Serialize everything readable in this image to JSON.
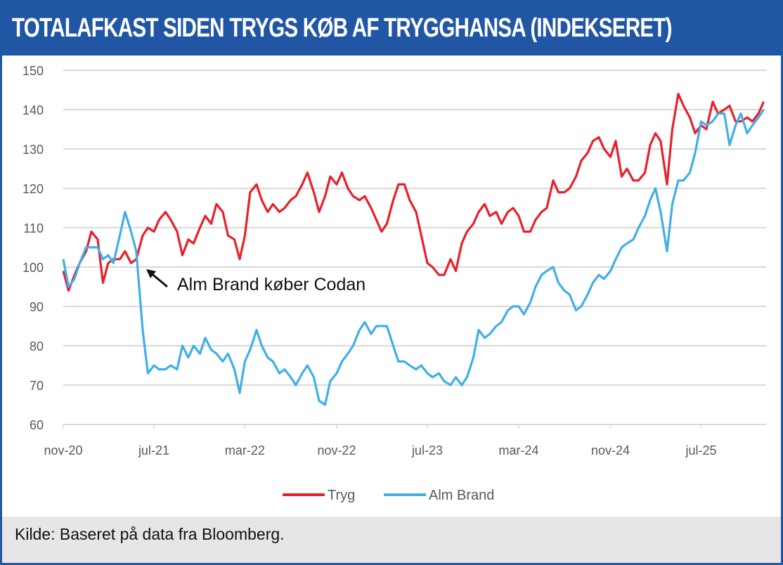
{
  "title": "TOTALAFKAST SIDEN TRYGS KØB AF TRYGGHANSA (INDEKSERET)",
  "source": "Kilde:  Baseret på data fra Bloomberg.",
  "chart_data": {
    "type": "line",
    "title": "TOTALAFKAST SIDEN TRYGS KØB AF TRYGGHANSA (INDEKSERET)",
    "xlabel": "",
    "ylabel": "",
    "ylim": [
      60,
      150
    ],
    "yticks": [
      "60",
      "70",
      "80",
      "90",
      "100",
      "110",
      "120",
      "130",
      "140",
      "150"
    ],
    "xticks": [
      {
        "label": "nov-20",
        "date": "2020-11-01"
      },
      {
        "label": "jul-21",
        "date": "2021-07-01"
      },
      {
        "label": "mar-22",
        "date": "2022-03-01"
      },
      {
        "label": "nov-22",
        "date": "2022-11-01"
      },
      {
        "label": "jul-23",
        "date": "2023-07-01"
      },
      {
        "label": "mar-24",
        "date": "2024-03-01"
      },
      {
        "label": "nov-24",
        "date": "2024-11-01"
      },
      {
        "label": "jul-25",
        "date": "2025-07-01"
      }
    ],
    "xlim": [
      "2020-11-01",
      "2025-12-31"
    ],
    "grid": "horizontal",
    "legend_position": "bottom",
    "annotation": {
      "text": "Alm Brand køber Codan",
      "date": "2021-06-15",
      "value": 102
    },
    "x": [
      "2020-11-01",
      "2020-11-15",
      "2020-12-01",
      "2020-12-15",
      "2021-01-01",
      "2021-01-15",
      "2021-02-01",
      "2021-02-15",
      "2021-03-01",
      "2021-03-15",
      "2021-04-01",
      "2021-04-15",
      "2021-05-01",
      "2021-05-15",
      "2021-06-01",
      "2021-06-15",
      "2021-07-01",
      "2021-07-15",
      "2021-08-01",
      "2021-08-15",
      "2021-09-01",
      "2021-09-15",
      "2021-10-01",
      "2021-10-15",
      "2021-11-01",
      "2021-11-15",
      "2021-12-01",
      "2021-12-15",
      "2022-01-01",
      "2022-01-15",
      "2022-02-01",
      "2022-02-15",
      "2022-03-01",
      "2022-03-15",
      "2022-04-01",
      "2022-04-15",
      "2022-05-01",
      "2022-05-15",
      "2022-06-01",
      "2022-06-15",
      "2022-07-01",
      "2022-07-15",
      "2022-08-01",
      "2022-08-15",
      "2022-09-01",
      "2022-09-15",
      "2022-10-01",
      "2022-10-15",
      "2022-11-01",
      "2022-11-15",
      "2022-12-01",
      "2022-12-15",
      "2023-01-01",
      "2023-01-15",
      "2023-02-01",
      "2023-02-15",
      "2023-03-01",
      "2023-03-15",
      "2023-04-01",
      "2023-04-15",
      "2023-05-01",
      "2023-05-15",
      "2023-06-01",
      "2023-06-15",
      "2023-07-01",
      "2023-07-15",
      "2023-08-01",
      "2023-08-15",
      "2023-09-01",
      "2023-09-15",
      "2023-10-01",
      "2023-10-15",
      "2023-11-01",
      "2023-11-15",
      "2023-12-01",
      "2023-12-15",
      "2024-01-01",
      "2024-01-15",
      "2024-02-01",
      "2024-02-15",
      "2024-03-01",
      "2024-03-15",
      "2024-04-01",
      "2024-04-15",
      "2024-05-01",
      "2024-05-15",
      "2024-06-01",
      "2024-06-15",
      "2024-07-01",
      "2024-07-15",
      "2024-08-01",
      "2024-08-15",
      "2024-09-01",
      "2024-09-15",
      "2024-10-01",
      "2024-10-15",
      "2024-11-01",
      "2024-11-15",
      "2024-12-01",
      "2024-12-15",
      "2025-01-01",
      "2025-01-15",
      "2025-02-01",
      "2025-02-15",
      "2025-03-01",
      "2025-03-15",
      "2025-04-01",
      "2025-04-15",
      "2025-05-01",
      "2025-05-15",
      "2025-06-01",
      "2025-06-15",
      "2025-07-01",
      "2025-07-15",
      "2025-08-01",
      "2025-08-15",
      "2025-09-01",
      "2025-09-15",
      "2025-10-01",
      "2025-10-15",
      "2025-11-01",
      "2025-11-15",
      "2025-12-01",
      "2025-12-15"
    ],
    "series": [
      {
        "name": "Tryg",
        "color": "#e8202a",
        "values": [
          99,
          94,
          98,
          101,
          104,
          109,
          107,
          96,
          101,
          102,
          102,
          104,
          101,
          102,
          108,
          110,
          109,
          112,
          114,
          112,
          109,
          103,
          107,
          106,
          110,
          113,
          111,
          116,
          114,
          108,
          107,
          102,
          108,
          119,
          121,
          117,
          114,
          116,
          114,
          115,
          117,
          118,
          121,
          124,
          119,
          114,
          118,
          123,
          121,
          124,
          120,
          118,
          117,
          118,
          115,
          112,
          109,
          111,
          117,
          121,
          121,
          117,
          114,
          108,
          101,
          100,
          98,
          98,
          102,
          99,
          106,
          109,
          111,
          114,
          116,
          113,
          114,
          111,
          114,
          115,
          113,
          109,
          109,
          112,
          114,
          115,
          122,
          119,
          119,
          120,
          123,
          127,
          129,
          132,
          133,
          130,
          128,
          132,
          123,
          125,
          122,
          122,
          124,
          131,
          134,
          132,
          121,
          135,
          144,
          141,
          138,
          134,
          136,
          135,
          142,
          139,
          140,
          141,
          137,
          137,
          138,
          137,
          139,
          142
        ]
      },
      {
        "name": "Alm Brand",
        "color": "#41aee8",
        "values": [
          102,
          95,
          97,
          101,
          105,
          105,
          105,
          102,
          103,
          101,
          108,
          114,
          109,
          104,
          84,
          73,
          75,
          74,
          74,
          75,
          74,
          80,
          77,
          80,
          78,
          82,
          79,
          78,
          76,
          78,
          74,
          68,
          76,
          79,
          84,
          80,
          77,
          76,
          73,
          74,
          72,
          70,
          73,
          75,
          72,
          66,
          65,
          71,
          73,
          76,
          78,
          80,
          84,
          86,
          83,
          85,
          85,
          85,
          80,
          76,
          76,
          75,
          74,
          75,
          73,
          72,
          73,
          71,
          70,
          72,
          70,
          72,
          77,
          84,
          82,
          83,
          85,
          86,
          89,
          90,
          90,
          88,
          91,
          95,
          98,
          99,
          100,
          96,
          94,
          93,
          89,
          90,
          93,
          96,
          98,
          97,
          99,
          102,
          105,
          106,
          107,
          110,
          113,
          117,
          120,
          114,
          104,
          116,
          122,
          122,
          124,
          129,
          137,
          136,
          137,
          139,
          139,
          131,
          136,
          139,
          134,
          136,
          138,
          140
        ]
      }
    ]
  }
}
